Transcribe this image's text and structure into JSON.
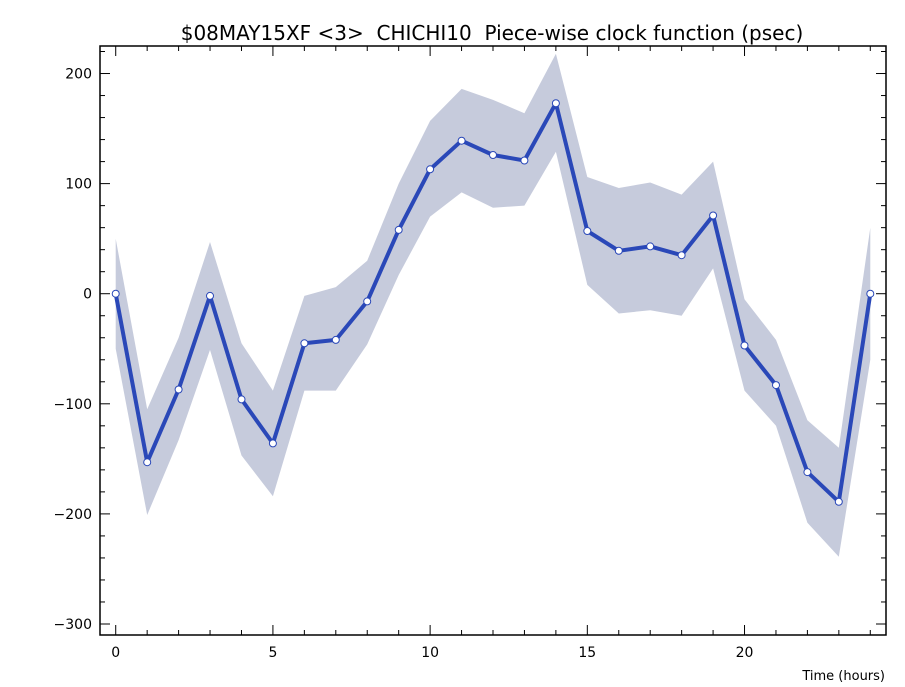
{
  "chart_data": {
    "type": "line",
    "title": "$08MAY15XF <3>  CHICHI10  Piece-wise clock function (psec)",
    "xlabel": "Time (hours)",
    "ylabel": "",
    "xlim": [
      -0.5,
      24.5
    ],
    "ylim": [
      -310,
      225
    ],
    "x_ticks": [
      0,
      5,
      10,
      15,
      20
    ],
    "y_ticks": [
      200,
      100,
      0,
      -100,
      -200,
      -300
    ],
    "x_tick_labels": [
      "0",
      "5",
      "10",
      "15",
      "20"
    ],
    "y_tick_labels": [
      "200",
      "100",
      "0",
      "−100",
      "−200",
      "−300"
    ],
    "grid": false,
    "series": [
      {
        "x": [
          0,
          1,
          2,
          3,
          4,
          5,
          6,
          7,
          8,
          9,
          10,
          11,
          12,
          13,
          14,
          15,
          16,
          17,
          18,
          19,
          20,
          21,
          22,
          23,
          24
        ],
        "values": [
          0,
          -153,
          -87,
          -2,
          -96,
          -136,
          -45,
          -42,
          -7,
          58,
          113,
          139,
          126,
          121,
          173,
          57,
          39,
          43,
          35,
          71,
          -47,
          -83,
          -162,
          -189,
          0
        ],
        "upper": [
          50,
          -105,
          -40,
          47,
          -45,
          -88,
          -2,
          6,
          30,
          100,
          157,
          186,
          176,
          164,
          218,
          106,
          96,
          101,
          90,
          120,
          -5,
          -42,
          -115,
          -140,
          60
        ],
        "lower": [
          -50,
          -201,
          -133,
          -51,
          -147,
          -184,
          -88,
          -88,
          -46,
          17,
          70,
          92,
          78,
          80,
          129,
          8,
          -18,
          -15,
          -20,
          23,
          -88,
          -120,
          -208,
          -239,
          -60
        ]
      }
    ],
    "colors": {
      "line": "#2a48b8",
      "band": "#c6cbdc",
      "marker_fill": "#ffffff",
      "marker_stroke": "#2a48b8",
      "axis": "#000000"
    }
  }
}
